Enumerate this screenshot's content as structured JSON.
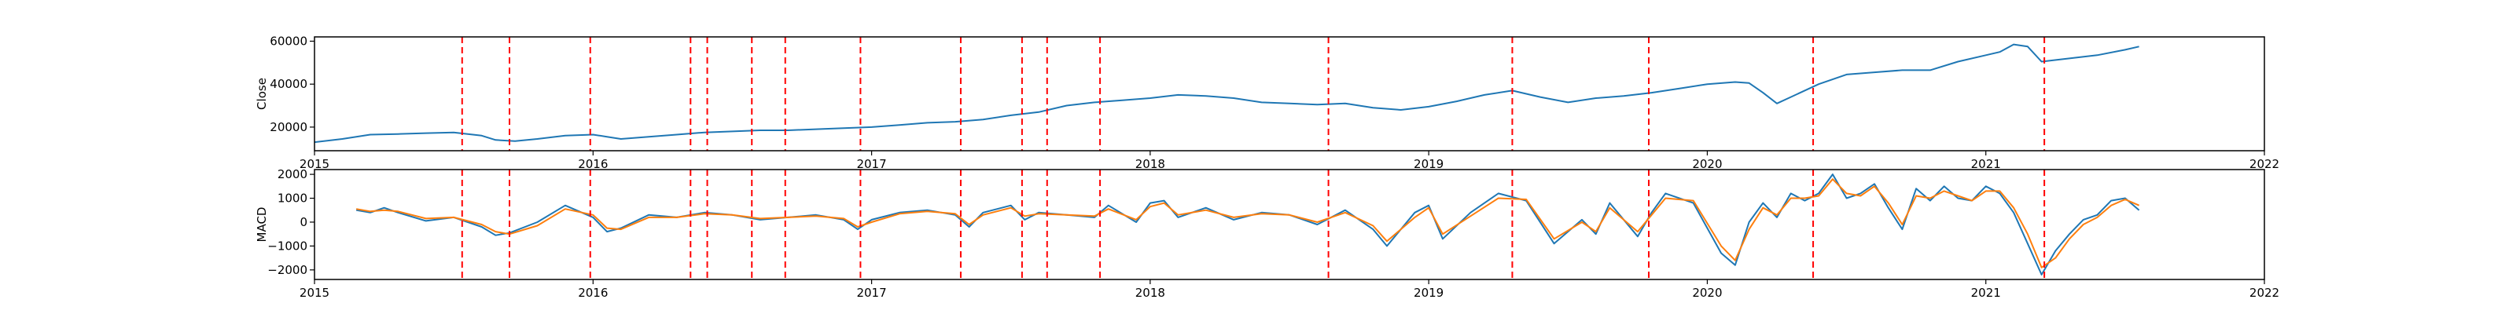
{
  "chart_data": [
    {
      "type": "line",
      "ylabel": "Close",
      "xlim": [
        2015.0,
        2022.0
      ],
      "ylim": [
        9000,
        62000
      ],
      "xticks": [
        2015,
        2016,
        2017,
        2018,
        2019,
        2020,
        2021,
        2022
      ],
      "xtick_labels": [
        "2015",
        "2016",
        "2017",
        "2018",
        "2019",
        "2020",
        "2021",
        "2022"
      ],
      "yticks": [
        20000,
        40000,
        60000
      ],
      "ytick_labels": [
        "20000",
        "40000",
        "60000"
      ],
      "grid": false,
      "series": [
        {
          "color": "#1f77b4",
          "x": [
            2015.0,
            2015.1,
            2015.2,
            2015.3,
            2015.4,
            2015.5,
            2015.6,
            2015.65,
            2015.72,
            2015.8,
            2015.9,
            2016.0,
            2016.05,
            2016.1,
            2016.2,
            2016.3,
            2016.4,
            2016.5,
            2016.6,
            2016.7,
            2016.8,
            2016.9,
            2017.0,
            2017.1,
            2017.2,
            2017.3,
            2017.4,
            2017.5,
            2017.6,
            2017.7,
            2017.8,
            2017.9,
            2018.0,
            2018.1,
            2018.2,
            2018.3,
            2018.4,
            2018.5,
            2018.6,
            2018.7,
            2018.8,
            2018.9,
            2019.0,
            2019.1,
            2019.2,
            2019.3,
            2019.4,
            2019.5,
            2019.6,
            2019.7,
            2019.8,
            2019.9,
            2020.0,
            2020.1,
            2020.15,
            2020.2,
            2020.25,
            2020.3,
            2020.4,
            2020.5,
            2020.6,
            2020.7,
            2020.8,
            2020.9,
            2021.0,
            2021.05,
            2021.1,
            2021.15,
            2021.2,
            2021.3,
            2021.4,
            2021.5,
            2021.55
          ],
          "y": [
            13000,
            14500,
            16500,
            16800,
            17200,
            17500,
            16000,
            14000,
            13500,
            14500,
            16000,
            16500,
            15500,
            14500,
            15500,
            16500,
            17500,
            18000,
            18500,
            18500,
            19000,
            19500,
            20000,
            21000,
            22000,
            22500,
            23500,
            25500,
            27000,
            30000,
            31500,
            32500,
            33500,
            35000,
            34500,
            33500,
            31500,
            31000,
            30500,
            31000,
            29000,
            28000,
            29500,
            32000,
            35000,
            37000,
            34000,
            31500,
            33500,
            34500,
            36000,
            38000,
            40000,
            41000,
            40500,
            36000,
            31000,
            34000,
            40000,
            44500,
            45500,
            46500,
            46500,
            50500,
            53500,
            55000,
            58500,
            57500,
            50500,
            52000,
            53500,
            56000,
            57500
          ]
        }
      ],
      "vlines": {
        "color": "#ff0000",
        "style": "dashed",
        "x": [
          2015.53,
          2015.7,
          2015.99,
          2016.35,
          2016.41,
          2016.57,
          2016.69,
          2016.96,
          2017.32,
          2017.54,
          2017.63,
          2017.82,
          2018.64,
          2019.3,
          2019.79,
          2020.38,
          2021.21
        ]
      }
    },
    {
      "type": "line",
      "ylabel": "MACD",
      "xlim": [
        2015.0,
        2022.0
      ],
      "ylim": [
        -2400,
        2200
      ],
      "xticks": [
        2015,
        2016,
        2017,
        2018,
        2019,
        2020,
        2021,
        2022
      ],
      "xtick_labels": [
        "2015",
        "2016",
        "2017",
        "2018",
        "2019",
        "2020",
        "2021",
        "2022"
      ],
      "yticks": [
        -2000,
        -1000,
        0,
        1000,
        2000
      ],
      "ytick_labels": [
        "−2000",
        "−1000",
        "0",
        "1000",
        "2000"
      ],
      "grid": false,
      "series": [
        {
          "color": "#1f77b4",
          "x": [
            2015.15,
            2015.2,
            2015.25,
            2015.3,
            2015.4,
            2015.5,
            2015.6,
            2015.65,
            2015.7,
            2015.8,
            2015.9,
            2016.0,
            2016.05,
            2016.1,
            2016.2,
            2016.3,
            2016.4,
            2016.5,
            2016.6,
            2016.7,
            2016.8,
            2016.9,
            2016.95,
            2017.0,
            2017.1,
            2017.2,
            2017.3,
            2017.35,
            2017.4,
            2017.5,
            2017.55,
            2017.6,
            2017.7,
            2017.8,
            2017.85,
            2017.95,
            2018.0,
            2018.05,
            2018.1,
            2018.2,
            2018.3,
            2018.4,
            2018.5,
            2018.6,
            2018.7,
            2018.8,
            2018.85,
            2018.95,
            2019.0,
            2019.05,
            2019.15,
            2019.25,
            2019.35,
            2019.45,
            2019.55,
            2019.6,
            2019.65,
            2019.75,
            2019.8,
            2019.85,
            2019.95,
            2020.05,
            2020.1,
            2020.15,
            2020.2,
            2020.25,
            2020.3,
            2020.35,
            2020.4,
            2020.45,
            2020.5,
            2020.55,
            2020.6,
            2020.65,
            2020.7,
            2020.75,
            2020.8,
            2020.85,
            2020.9,
            2020.95,
            2021.0,
            2021.05,
            2021.1,
            2021.15,
            2021.2,
            2021.25,
            2021.3,
            2021.35,
            2021.4,
            2021.45,
            2021.5,
            2021.55
          ],
          "y": [
            500,
            400,
            600,
            400,
            50,
            200,
            -200,
            -550,
            -450,
            0,
            700,
            200,
            -400,
            -250,
            300,
            200,
            400,
            300,
            100,
            200,
            300,
            100,
            -300,
            100,
            400,
            500,
            300,
            -200,
            400,
            700,
            100,
            400,
            300,
            200,
            700,
            0,
            800,
            900,
            200,
            600,
            100,
            400,
            300,
            -100,
            500,
            -300,
            -1000,
            400,
            700,
            -700,
            400,
            1200,
            900,
            -900,
            100,
            -500,
            800,
            -600,
            400,
            1200,
            800,
            -1300,
            -1800,
            0,
            800,
            200,
            1200,
            900,
            1200,
            2000,
            1000,
            1200,
            1600,
            600,
            -300,
            1400,
            900,
            1500,
            1000,
            900,
            1500,
            1200,
            400,
            -900,
            -2200,
            -1200,
            -500,
            100,
            300,
            900,
            1000,
            500
          ]
        },
        {
          "color": "#ff7f0e",
          "x": [
            2015.15,
            2015.2,
            2015.25,
            2015.3,
            2015.4,
            2015.5,
            2015.6,
            2015.65,
            2015.7,
            2015.8,
            2015.9,
            2016.0,
            2016.05,
            2016.1,
            2016.2,
            2016.3,
            2016.4,
            2016.5,
            2016.6,
            2016.7,
            2016.8,
            2016.9,
            2016.95,
            2017.0,
            2017.1,
            2017.2,
            2017.3,
            2017.35,
            2017.4,
            2017.5,
            2017.55,
            2017.6,
            2017.7,
            2017.8,
            2017.85,
            2017.95,
            2018.0,
            2018.05,
            2018.1,
            2018.2,
            2018.3,
            2018.4,
            2018.5,
            2018.6,
            2018.7,
            2018.8,
            2018.85,
            2018.95,
            2019.0,
            2019.05,
            2019.15,
            2019.25,
            2019.35,
            2019.45,
            2019.55,
            2019.6,
            2019.65,
            2019.75,
            2019.8,
            2019.85,
            2019.95,
            2020.05,
            2020.1,
            2020.15,
            2020.2,
            2020.25,
            2020.3,
            2020.35,
            2020.4,
            2020.45,
            2020.5,
            2020.55,
            2020.6,
            2020.65,
            2020.7,
            2020.75,
            2020.8,
            2020.85,
            2020.9,
            2020.95,
            2021.0,
            2021.05,
            2021.1,
            2021.15,
            2021.2,
            2021.25,
            2021.3,
            2021.35,
            2021.4,
            2021.45,
            2021.5,
            2021.55
          ],
          "y": [
            550,
            450,
            500,
            450,
            150,
            200,
            -100,
            -400,
            -500,
            -150,
            550,
            300,
            -250,
            -300,
            200,
            200,
            350,
            300,
            150,
            200,
            250,
            150,
            -200,
            0,
            350,
            450,
            350,
            -100,
            300,
            600,
            250,
            350,
            300,
            250,
            550,
            100,
            650,
            800,
            300,
            500,
            200,
            350,
            300,
            0,
            400,
            -150,
            -800,
            200,
            600,
            -500,
            250,
            1000,
            950,
            -700,
            0,
            -400,
            600,
            -400,
            300,
            1000,
            900,
            -1000,
            -1600,
            -300,
            600,
            300,
            1000,
            1000,
            1100,
            1800,
            1200,
            1100,
            1500,
            800,
            -100,
            1100,
            1000,
            1300,
            1100,
            900,
            1300,
            1300,
            600,
            -500,
            -1900,
            -1500,
            -700,
            -100,
            200,
            700,
            950,
            700
          ]
        }
      ],
      "vlines": {
        "color": "#ff0000",
        "style": "dashed",
        "x": [
          2015.53,
          2015.7,
          2015.99,
          2016.35,
          2016.41,
          2016.57,
          2016.69,
          2016.96,
          2017.32,
          2017.54,
          2017.63,
          2017.82,
          2018.64,
          2019.3,
          2019.79,
          2020.38,
          2021.21
        ]
      }
    }
  ]
}
